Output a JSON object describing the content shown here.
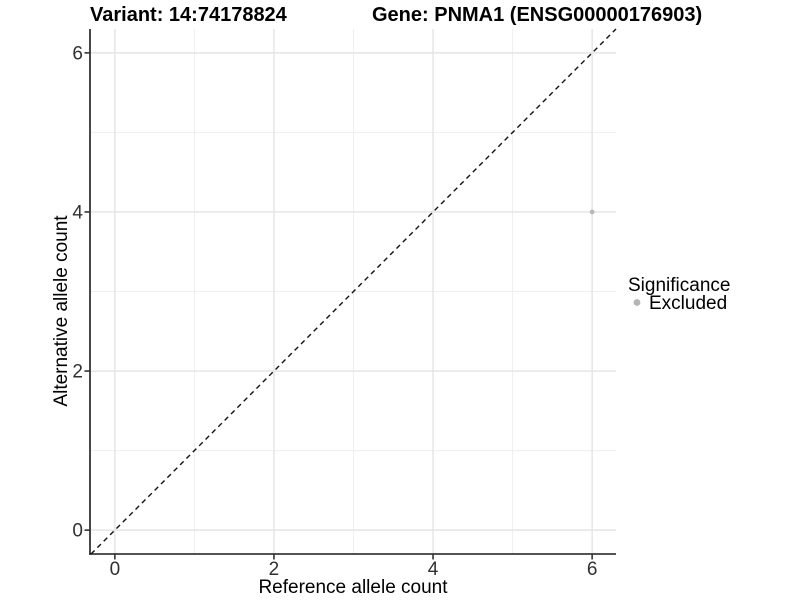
{
  "chart_data": {
    "type": "scatter",
    "titles": {
      "left": "Variant: 14:74178824",
      "right": "Gene: PNMA1 (ENSG00000176903)"
    },
    "xlabel": "Reference allele count",
    "ylabel": "Alternative allele count",
    "xlim": [
      -0.3,
      6.3
    ],
    "ylim": [
      -0.3,
      6.3
    ],
    "xticks": [
      0,
      2,
      4,
      6
    ],
    "yticks": [
      0,
      2,
      4,
      6
    ],
    "minor_xticks": [
      1,
      3,
      5
    ],
    "minor_yticks": [
      1,
      3,
      5
    ],
    "grid": {
      "major": true,
      "minor": true
    },
    "series": [
      {
        "name": "Excluded",
        "color": "#b9b9b9",
        "marker": "circle",
        "points": [
          [
            6,
            4
          ]
        ]
      }
    ],
    "identity_line": {
      "equation": "y = x",
      "style": "dashed",
      "color": "#111111"
    },
    "legend": {
      "position": "right",
      "title": "Significance",
      "entries": [
        {
          "label": "Excluded",
          "color": "#b5b5b5",
          "marker": "circle"
        }
      ]
    },
    "colors": {
      "grid_major": "#e4e4e4",
      "grid_minor": "#efefef",
      "axis_line": "#1a1a1a",
      "tick_mark": "#333333"
    }
  }
}
